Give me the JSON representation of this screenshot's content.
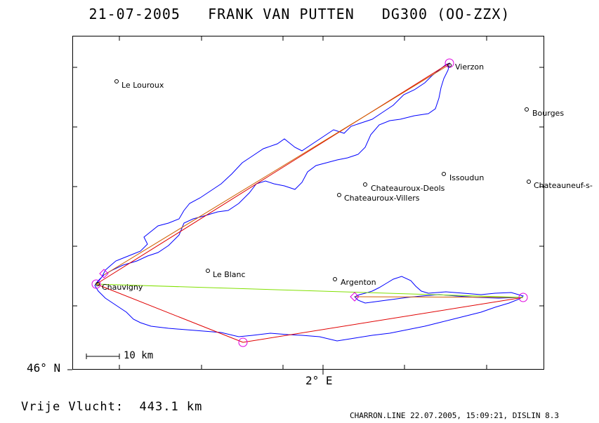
{
  "title": "21-07-2005   FRANK VAN PUTTEN   DG300 (OO-ZZX)",
  "axis": {
    "lat_label": "46° N",
    "lon_label": "2° E"
  },
  "scale": {
    "label": "10 km"
  },
  "distance_label": "Vrije Vlucht:  443.1 km",
  "footer": "CHARRON.LINE 22.07.2005, 15:09:21, DISLIN 8.3",
  "colors": {
    "track": "#0000ff",
    "course_red": "#e00000",
    "course_orange": "#d06000",
    "closing_leg": "#80e000",
    "turnpoint": "#e000e0"
  },
  "cities": [
    {
      "name": "Le Louroux"
    },
    {
      "name": "Vierzon"
    },
    {
      "name": "Bourges"
    },
    {
      "name": "Issoudun"
    },
    {
      "name": "Chateauroux-Deols"
    },
    {
      "name": "Chateauroux-Villers"
    },
    {
      "name": "Chateauneuf-s-"
    },
    {
      "name": "Le Blanc"
    },
    {
      "name": "Chauvigny"
    },
    {
      "name": "Argenton"
    }
  ]
}
